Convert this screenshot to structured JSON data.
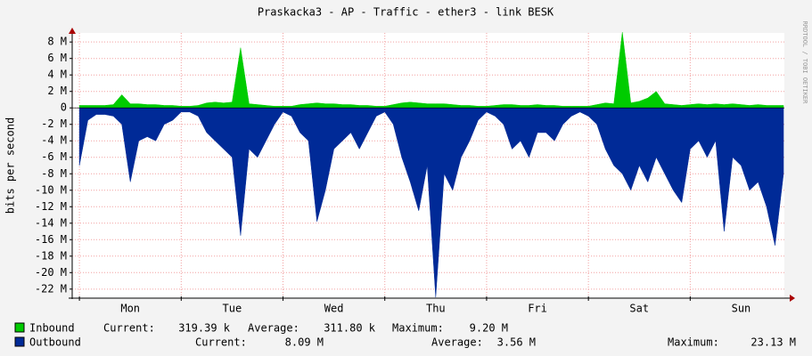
{
  "chart_data": {
    "type": "area",
    "title": "Praskacka3 - AP - Traffic - ether3 - link BESK",
    "y_label": "bits per second",
    "watermark": "RRDTOOL / TOBI OETIKER",
    "x": [
      0,
      2,
      4,
      6,
      8,
      10,
      12,
      14,
      16,
      18,
      20,
      22,
      24,
      26,
      28,
      30,
      32,
      34,
      36,
      38,
      40,
      42,
      44,
      46,
      48,
      50,
      52,
      54,
      56,
      58,
      60,
      62,
      64,
      66,
      68,
      70,
      72,
      74,
      76,
      78,
      80,
      82,
      84,
      86,
      88,
      90,
      92,
      94,
      96,
      98,
      100,
      102,
      104,
      106,
      108,
      110,
      112,
      114,
      116,
      118,
      120,
      122,
      124,
      126,
      128,
      130,
      132,
      134,
      136,
      138,
      140,
      142,
      144,
      146,
      148,
      150,
      152,
      154,
      156,
      158,
      160,
      162,
      164,
      166
    ],
    "xlim": [
      -1.7,
      166.2
    ],
    "xticks": [
      {
        "value": 12,
        "label": "Mon"
      },
      {
        "value": 36,
        "label": "Tue"
      },
      {
        "value": 60,
        "label": "Wed"
      },
      {
        "value": 84,
        "label": "Thu"
      },
      {
        "value": 108,
        "label": "Fri"
      },
      {
        "value": 132,
        "label": "Sat"
      },
      {
        "value": 156,
        "label": "Sun"
      }
    ],
    "xgrid": [
      0,
      24,
      48,
      72,
      96,
      120,
      144
    ],
    "ylim": [
      -23.1,
      9.1
    ],
    "yticks": [
      {
        "value": 8,
        "label": "8 M"
      },
      {
        "value": 6,
        "label": "6 M"
      },
      {
        "value": 4,
        "label": "4 M"
      },
      {
        "value": 2,
        "label": "2 M"
      },
      0,
      {
        "value": -2,
        "label": "-2 M"
      },
      {
        "value": -4,
        "label": "-4 M"
      },
      {
        "value": -6,
        "label": "-6 M"
      },
      {
        "value": -8,
        "label": "-8 M"
      },
      {
        "value": -10,
        "label": "-10 M"
      },
      {
        "value": -12,
        "label": "-12 M"
      },
      {
        "value": -14,
        "label": "-14 M"
      },
      {
        "value": -16,
        "label": "-16 M"
      },
      {
        "value": -18,
        "label": "-18 M"
      },
      {
        "value": -20,
        "label": "-20 M"
      },
      {
        "value": -22,
        "label": "-22 M"
      }
    ],
    "grid": true,
    "legend_labels": {
      "current": "Current:",
      "average": "Average:",
      "maximum": "Maximum:"
    },
    "series": [
      {
        "name": "Inbound",
        "color": "#00cc00",
        "current": "319.39 k",
        "average": "311.80 k",
        "maximum": "9.20 M",
        "values": [
          0.3,
          0.3,
          0.3,
          0.3,
          0.4,
          1.6,
          0.5,
          0.5,
          0.4,
          0.4,
          0.3,
          0.3,
          0.2,
          0.2,
          0.3,
          0.6,
          0.7,
          0.6,
          0.7,
          7.3,
          0.5,
          0.4,
          0.3,
          0.2,
          0.2,
          0.2,
          0.4,
          0.5,
          0.6,
          0.5,
          0.5,
          0.4,
          0.4,
          0.3,
          0.3,
          0.2,
          0.2,
          0.4,
          0.6,
          0.7,
          0.6,
          0.5,
          0.5,
          0.5,
          0.4,
          0.3,
          0.3,
          0.2,
          0.2,
          0.3,
          0.4,
          0.4,
          0.3,
          0.3,
          0.4,
          0.3,
          0.3,
          0.2,
          0.2,
          0.2,
          0.2,
          0.4,
          0.6,
          0.5,
          9.2,
          0.6,
          0.8,
          1.2,
          2.0,
          0.5,
          0.4,
          0.3,
          0.4,
          0.5,
          0.4,
          0.5,
          0.4,
          0.5,
          0.4,
          0.3,
          0.4,
          0.3,
          0.3,
          0.3
        ]
      },
      {
        "name": "Outbound",
        "color": "#002a97",
        "current": "8.09 M",
        "average": "3.56 M",
        "maximum": "23.13 M",
        "values": [
          -7,
          -1.5,
          -0.8,
          -0.8,
          -1,
          -2,
          -9,
          -4,
          -3.5,
          -4,
          -2,
          -1.5,
          -0.5,
          -0.5,
          -1,
          -3,
          -4,
          -5,
          -6,
          -15.5,
          -5,
          -6,
          -4,
          -2,
          -0.5,
          -1,
          -3,
          -4,
          -13.8,
          -10,
          -5,
          -4,
          -3,
          -5,
          -3,
          -1,
          -0.5,
          -2,
          -6,
          -9,
          -12.5,
          -7,
          -23,
          -8,
          -10,
          -6,
          -4,
          -1.5,
          -0.5,
          -1,
          -2,
          -5,
          -4,
          -6,
          -3,
          -3,
          -4,
          -2,
          -1,
          -0.5,
          -1,
          -2,
          -5,
          -7,
          -8,
          -10,
          -7,
          -9,
          -6,
          -8,
          -10,
          -11.5,
          -5,
          -4,
          -6,
          -4,
          -15,
          -6,
          -7,
          -10,
          -9,
          -12,
          -16.7,
          -8
        ]
      }
    ]
  }
}
